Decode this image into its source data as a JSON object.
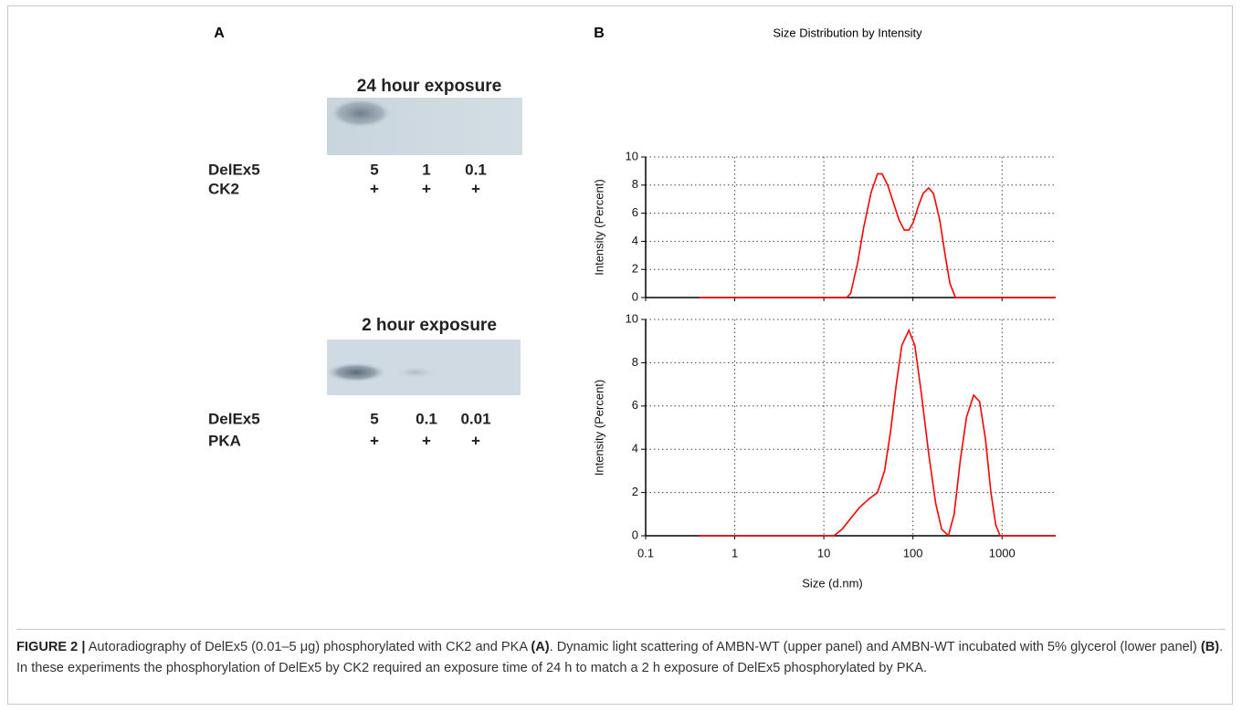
{
  "panel_a": {
    "label": "A",
    "blots": [
      {
        "title": "24 hour exposure",
        "rows": [
          {
            "label": "DelEx5",
            "cells": [
              "5",
              "1",
              "0.1"
            ]
          },
          {
            "label": "CK2",
            "cells": [
              "+",
              "+",
              "+"
            ]
          }
        ]
      },
      {
        "title": "2 hour exposure",
        "rows": [
          {
            "label": "DelEx5",
            "cells": [
              "5",
              "0.1",
              "0.01"
            ]
          },
          {
            "label": "PKA",
            "cells": [
              "+",
              "+",
              "+"
            ]
          }
        ]
      }
    ]
  },
  "panel_b": {
    "label": "B",
    "title": "Size Distribution by Intensity"
  },
  "chart_data": [
    {
      "type": "line",
      "ylabel": "Intensity (Percent)",
      "log_x": true,
      "grid": true,
      "xtick_labels": false,
      "xlim": [
        0.1,
        4000
      ],
      "xticks": [
        0.1,
        1,
        10,
        100,
        1000
      ],
      "ylim": [
        0,
        10
      ],
      "yticks": [
        0,
        2,
        4,
        6,
        8,
        10
      ],
      "x": [
        0.4,
        18,
        20,
        24,
        28,
        34,
        40,
        45,
        52,
        60,
        70,
        80,
        90,
        100,
        115,
        130,
        150,
        170,
        200,
        230,
        260,
        300,
        4000
      ],
      "series": [
        {
          "color": "#ff0000",
          "values": [
            0,
            0,
            0.3,
            2.5,
            5,
            7.5,
            8.8,
            8.8,
            8,
            6.8,
            5.5,
            4.8,
            4.8,
            5.3,
            6.5,
            7.4,
            7.8,
            7.4,
            5.5,
            3,
            1,
            0,
            0
          ]
        }
      ]
    },
    {
      "type": "line",
      "ylabel": "Intensity (Percent)",
      "xlabel": "Size (d.nm)",
      "log_x": true,
      "grid": true,
      "xtick_labels": true,
      "xlim": [
        0.1,
        4000
      ],
      "xticks": [
        0.1,
        1,
        10,
        100,
        1000
      ],
      "ylim": [
        0,
        10
      ],
      "yticks": [
        0,
        2,
        4,
        6,
        8,
        10
      ],
      "x": [
        0.4,
        13,
        16,
        20,
        25,
        32,
        40,
        48,
        56,
        65,
        75,
        90,
        105,
        125,
        150,
        180,
        210,
        250,
        290,
        340,
        400,
        480,
        560,
        650,
        750,
        850,
        950,
        4000
      ],
      "series": [
        {
          "color": "#ff0000",
          "values": [
            0,
            0,
            0.3,
            0.8,
            1.3,
            1.7,
            2,
            3,
            4.8,
            7,
            8.8,
            9.5,
            8.8,
            6.5,
            3.8,
            1.5,
            0.3,
            0,
            1,
            3.5,
            5.5,
            6.5,
            6.2,
            4.5,
            2,
            0.5,
            0,
            0
          ]
        }
      ]
    }
  ],
  "caption": {
    "label": "FIGURE 2 |",
    "text_1": "Autoradiography of DelEx5 (0.01–5 μg) phosphorylated with CK2 and PKA",
    "ref_a": "(A)",
    "text_2": ". Dynamic light scattering of AMBN-WT (upper panel) and AMBN-WT incubated with 5% glycerol (lower panel)",
    "ref_b": "(B)",
    "text_3": ". In these experiments the phosphorylation of DelEx5 by CK2 required an exposure time of 24 h to match a 2 h exposure of DelEx5 phosphorylated by PKA."
  }
}
